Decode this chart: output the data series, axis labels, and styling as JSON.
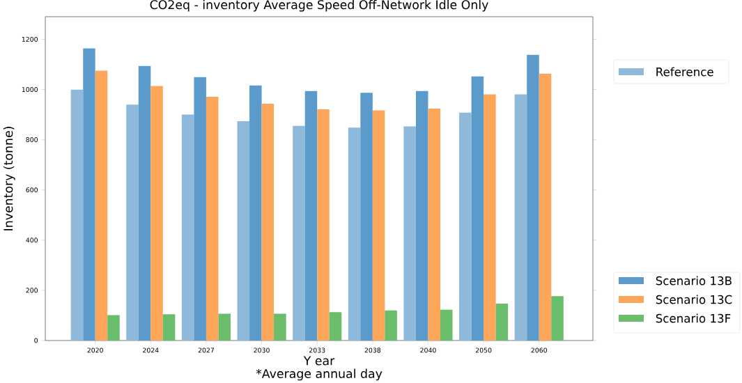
{
  "chart_data": {
    "type": "bar",
    "title": "CO2eq - inventory Average Speed Off-Network Idle Only",
    "xlabel": "Y ear",
    "ylabel": "Inventory (tonne)",
    "annotations": [
      "*Average annual day"
    ],
    "categories": [
      "2020",
      "2024",
      "2027",
      "2030",
      "2033",
      "2038",
      "2040",
      "2050",
      "2060"
    ],
    "series": [
      {
        "name": "Reference",
        "color": "#8fb9da",
        "values": [
          1000,
          940,
          900,
          874,
          855,
          848,
          853,
          908,
          981
        ]
      },
      {
        "name": "Scenario 13B",
        "color": "#5b9bcb",
        "values": [
          1164,
          1094,
          1049,
          1016,
          994,
          987,
          994,
          1052,
          1138
        ]
      },
      {
        "name": "Scenario 13C",
        "color": "#fda65a",
        "values": [
          1075,
          1014,
          971,
          943,
          921,
          917,
          924,
          981,
          1063
        ]
      },
      {
        "name": "Scenario 13F",
        "color": "#6abd6a",
        "values": [
          101,
          105,
          107,
          107,
          113,
          120,
          123,
          147,
          177
        ]
      }
    ],
    "ylim": [
      0,
      1290
    ],
    "yticks": [
      0,
      200,
      400,
      600,
      800,
      1000,
      1200
    ],
    "legend": "right"
  }
}
